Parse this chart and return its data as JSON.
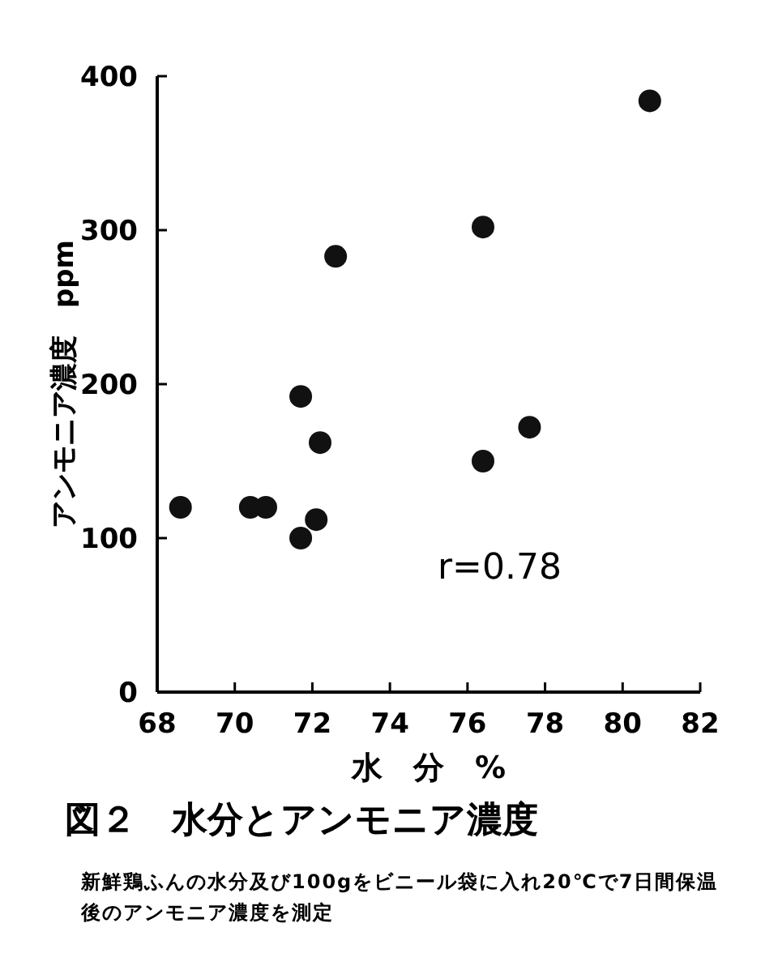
{
  "chart_data": {
    "type": "scatter",
    "title": "図２　水分とアンモニア濃度",
    "xlabel": "水　分　%",
    "ylabel": "アンモニア濃度　ppm",
    "annotations": [
      "r=0.78",
      "新鮮鶏ふんの水分及び100gをビニール袋に入れ20℃で7日間保温後のアンモニア濃度を測定"
    ],
    "x": [
      68.6,
      70.4,
      70.8,
      71.7,
      71.7,
      72.1,
      72.2,
      72.6,
      76.4,
      76.4,
      77.6,
      80.7
    ],
    "values": [
      120,
      120,
      120,
      100,
      192,
      112,
      162,
      283,
      302,
      150,
      172,
      384
    ],
    "color": "#111111",
    "marker": "circle",
    "xlim": [
      68,
      82
    ],
    "xticks": [
      68,
      70,
      72,
      74,
      76,
      78,
      80,
      82
    ],
    "ylim": [
      0,
      400
    ],
    "yticks": [
      0,
      100,
      200,
      300,
      400
    ],
    "grid": false
  }
}
